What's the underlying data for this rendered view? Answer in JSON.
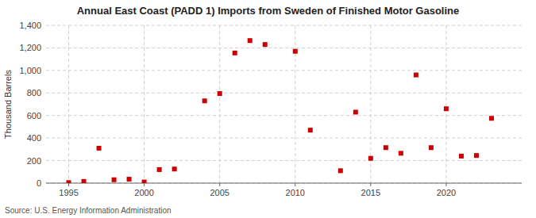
{
  "chart_data": {
    "type": "scatter",
    "title": "Annual East Coast (PADD 1) Imports from Sweden of Finished Motor Gasoline",
    "y_label": "Thousand Barrels",
    "annotations": [
      "Source: U.S. Energy Information Administration"
    ],
    "color": "#cc0000",
    "marker": "square",
    "grid": true,
    "xlim": [
      1993.5,
      2025
    ],
    "ylim": [
      0,
      1400
    ],
    "xticks": [
      1995,
      2000,
      2005,
      2010,
      2015,
      2020
    ],
    "yticks": [
      0,
      200,
      400,
      600,
      800,
      {
        "value": 1000,
        "label": "1,000"
      },
      {
        "value": 1200,
        "label": "1,200"
      },
      {
        "value": 1400,
        "label": "1,400"
      }
    ],
    "x": [
      1995,
      1996,
      1997,
      1998,
      1999,
      2000,
      2001,
      2002,
      2004,
      2005,
      2006,
      2007,
      2008,
      2010,
      2011,
      2013,
      2014,
      2015,
      2016,
      2017,
      2018,
      2019,
      2020,
      2021,
      2022,
      2023
    ],
    "values": [
      5,
      15,
      310,
      30,
      35,
      10,
      120,
      125,
      730,
      795,
      1155,
      1265,
      1230,
      1170,
      470,
      110,
      630,
      220,
      315,
      265,
      960,
      315,
      660,
      240,
      245,
      575
    ]
  }
}
